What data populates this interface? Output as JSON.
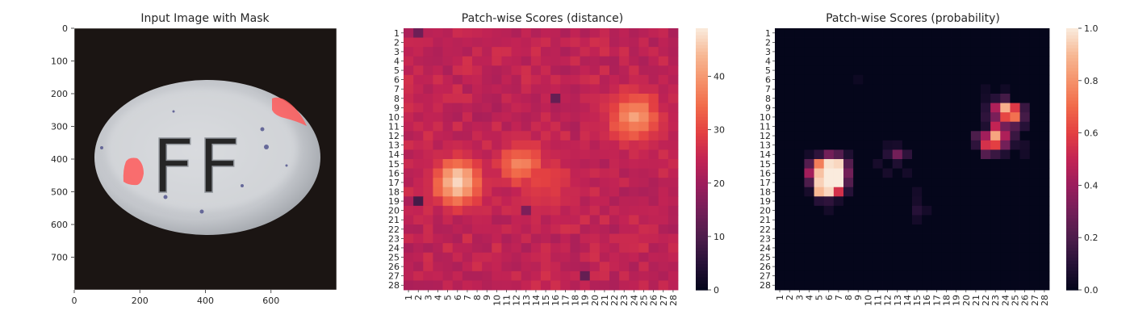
{
  "chart_data": [
    {
      "type": "image",
      "title": "Input Image with Mask",
      "x_ticks": [
        "0",
        "200",
        "400",
        "600"
      ],
      "y_ticks": [
        "0",
        "100",
        "200",
        "300",
        "400",
        "500",
        "600",
        "700"
      ],
      "xlim": [
        0,
        800
      ],
      "ylim": [
        800,
        0
      ],
      "image": {
        "object": "oval pill with embossed lettering",
        "embossed_text": "FF",
        "mask_color": "#ff5a5a",
        "mask_regions": [
          {
            "x_range": [
              600,
              710
            ],
            "y_range": [
              210,
              320
            ]
          },
          {
            "x_range": [
              145,
              210
            ],
            "y_range": [
              395,
              475
            ]
          }
        ]
      }
    },
    {
      "type": "heatmap",
      "title": "Patch-wise Scores (distance)",
      "x_ticks": [
        "1",
        "2",
        "3",
        "4",
        "5",
        "6",
        "7",
        "8",
        "9",
        "10",
        "11",
        "12",
        "13",
        "14",
        "15",
        "16",
        "17",
        "18",
        "19",
        "20",
        "21",
        "22",
        "23",
        "24",
        "25",
        "26",
        "27",
        "28"
      ],
      "y_ticks": [
        "1",
        "2",
        "3",
        "4",
        "5",
        "6",
        "7",
        "8",
        "9",
        "10",
        "11",
        "12",
        "13",
        "14",
        "15",
        "16",
        "17",
        "18",
        "19",
        "20",
        "21",
        "22",
        "23",
        "24",
        "25",
        "26",
        "27",
        "28"
      ],
      "colorbar_ticks": [
        "0",
        "10",
        "20",
        "30",
        "40"
      ],
      "vmin": 0,
      "vmax": 49,
      "background_value": 23,
      "hotspots": [
        {
          "row": 17,
          "col": 6,
          "peak": 48,
          "sigma": 1.6
        },
        {
          "row": 15,
          "col": 12.5,
          "peak": 37,
          "sigma": 1.6
        },
        {
          "row": 10,
          "col": 24,
          "peak": 40,
          "sigma": 1.8
        },
        {
          "row": 17,
          "col": 15,
          "peak": 30,
          "sigma": 2.0
        }
      ],
      "low_cells": [
        [
          19,
          2,
          9
        ],
        [
          1,
          2,
          14
        ],
        [
          27,
          19,
          13
        ],
        [
          8,
          16,
          13
        ],
        [
          20,
          13,
          16
        ]
      ]
    },
    {
      "type": "heatmap",
      "title": "Patch-wise Scores (probability)",
      "x_ticks": [
        "1",
        "2",
        "3",
        "4",
        "5",
        "6",
        "7",
        "8",
        "9",
        "10",
        "11",
        "12",
        "13",
        "14",
        "15",
        "16",
        "17",
        "18",
        "19",
        "20",
        "21",
        "22",
        "23",
        "24",
        "25",
        "26",
        "27",
        "28"
      ],
      "y_ticks": [
        "1",
        "2",
        "3",
        "4",
        "5",
        "6",
        "7",
        "8",
        "9",
        "10",
        "11",
        "12",
        "13",
        "14",
        "15",
        "16",
        "17",
        "18",
        "19",
        "20",
        "21",
        "22",
        "23",
        "24",
        "25",
        "26",
        "27",
        "28"
      ],
      "colorbar_ticks": [
        "0.0",
        "0.2",
        "0.4",
        "0.6",
        "0.8",
        "1.0"
      ],
      "vmin": 0,
      "vmax": 1,
      "cells": [
        [
          14,
          5,
          0.12
        ],
        [
          14,
          6,
          0.3
        ],
        [
          14,
          7,
          0.22
        ],
        [
          14,
          8,
          0.08
        ],
        [
          14,
          4,
          0.05
        ],
        [
          15,
          4,
          0.22
        ],
        [
          15,
          5,
          0.75
        ],
        [
          15,
          6,
          0.98
        ],
        [
          15,
          7,
          0.96
        ],
        [
          15,
          8,
          0.22
        ],
        [
          16,
          4,
          0.42
        ],
        [
          16,
          5,
          0.92
        ],
        [
          16,
          6,
          1.0
        ],
        [
          16,
          7,
          1.0
        ],
        [
          16,
          8,
          0.3
        ],
        [
          17,
          4,
          0.2
        ],
        [
          17,
          5,
          0.95
        ],
        [
          17,
          6,
          1.0
        ],
        [
          17,
          7,
          1.0
        ],
        [
          17,
          8,
          0.22
        ],
        [
          18,
          5,
          0.9
        ],
        [
          18,
          6,
          0.96
        ],
        [
          18,
          7,
          0.55
        ],
        [
          18,
          8,
          0.1
        ],
        [
          18,
          4,
          0.06
        ],
        [
          19,
          5,
          0.1
        ],
        [
          19,
          6,
          0.12
        ],
        [
          19,
          7,
          0.06
        ],
        [
          20,
          6,
          0.05
        ],
        [
          14,
          12,
          0.1
        ],
        [
          14,
          13,
          0.3
        ],
        [
          14,
          14,
          0.12
        ],
        [
          13,
          13,
          0.06
        ],
        [
          13,
          12,
          0.05
        ],
        [
          15,
          11,
          0.06
        ],
        [
          15,
          13,
          0.08
        ],
        [
          16,
          12,
          0.06
        ],
        [
          16,
          14,
          0.05
        ],
        [
          19,
          15,
          0.06
        ],
        [
          20,
          15,
          0.1
        ],
        [
          20,
          16,
          0.05
        ],
        [
          21,
          15,
          0.05
        ],
        [
          18,
          15,
          0.05
        ],
        [
          8,
          23,
          0.1
        ],
        [
          8,
          24,
          0.18
        ],
        [
          8,
          22,
          0.05
        ],
        [
          9,
          22,
          0.1
        ],
        [
          9,
          23,
          0.45
        ],
        [
          9,
          24,
          0.88
        ],
        [
          9,
          25,
          0.58
        ],
        [
          9,
          26,
          0.15
        ],
        [
          10,
          22,
          0.12
        ],
        [
          10,
          23,
          0.32
        ],
        [
          10,
          24,
          0.62
        ],
        [
          10,
          25,
          0.72
        ],
        [
          10,
          26,
          0.18
        ],
        [
          11,
          22,
          0.08
        ],
        [
          11,
          23,
          0.5
        ],
        [
          11,
          24,
          0.3
        ],
        [
          11,
          25,
          0.22
        ],
        [
          11,
          26,
          0.1
        ],
        [
          12,
          21,
          0.2
        ],
        [
          12,
          22,
          0.42
        ],
        [
          12,
          23,
          0.85
        ],
        [
          12,
          24,
          0.45
        ],
        [
          12,
          25,
          0.15
        ],
        [
          13,
          21,
          0.12
        ],
        [
          13,
          22,
          0.55
        ],
        [
          13,
          23,
          0.6
        ],
        [
          13,
          24,
          0.3
        ],
        [
          13,
          25,
          0.08
        ],
        [
          13,
          26,
          0.06
        ],
        [
          14,
          22,
          0.22
        ],
        [
          14,
          23,
          0.15
        ],
        [
          14,
          24,
          0.08
        ],
        [
          14,
          26,
          0.05
        ],
        [
          6,
          9,
          0.03
        ],
        [
          7,
          22,
          0.04
        ],
        [
          7,
          24,
          0.04
        ]
      ]
    }
  ]
}
